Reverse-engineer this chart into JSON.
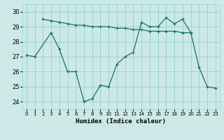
{
  "xlabel": "Humidex (Indice chaleur)",
  "background_color": "#cce9e7",
  "grid_color": "#99d4d0",
  "line_color": "#1a6e6a",
  "xlim": [
    -0.5,
    23.5
  ],
  "ylim": [
    23.5,
    30.5
  ],
  "yticks": [
    24,
    25,
    26,
    27,
    28,
    29,
    30
  ],
  "xticks": [
    0,
    1,
    2,
    3,
    4,
    5,
    6,
    7,
    8,
    9,
    10,
    11,
    12,
    13,
    14,
    15,
    16,
    17,
    18,
    19,
    20,
    21,
    22,
    23
  ],
  "line1_x": [
    2,
    3,
    4,
    5,
    6,
    7,
    8,
    9,
    10,
    11,
    12,
    13,
    14,
    15,
    16,
    17,
    18,
    19,
    20
  ],
  "line1_y": [
    29.5,
    29.4,
    29.3,
    29.2,
    29.1,
    29.1,
    29.0,
    29.0,
    29.0,
    28.9,
    28.9,
    28.8,
    28.8,
    28.7,
    28.7,
    28.7,
    28.7,
    28.6,
    28.6
  ],
  "line2_x": [
    0,
    1,
    3,
    4,
    5,
    6,
    7,
    8,
    9,
    10,
    11,
    12,
    13,
    14,
    15,
    16,
    17,
    18,
    19,
    20,
    21,
    22,
    23
  ],
  "line2_y": [
    27.1,
    27.0,
    28.6,
    27.5,
    26.0,
    26.0,
    24.0,
    24.2,
    25.1,
    25.0,
    26.5,
    27.0,
    27.3,
    29.3,
    29.0,
    29.0,
    29.6,
    29.2,
    29.5,
    28.6,
    26.3,
    25.0,
    24.9
  ]
}
